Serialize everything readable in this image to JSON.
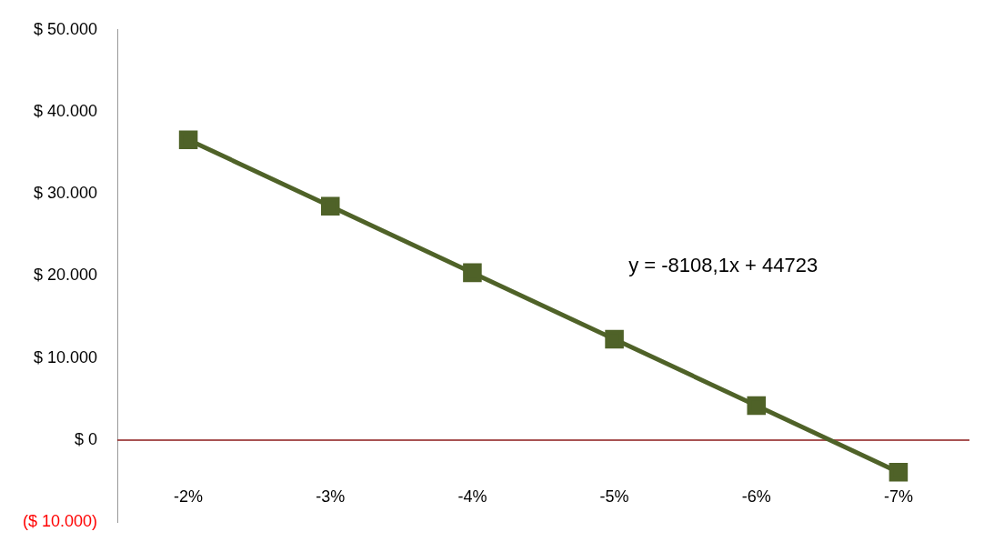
{
  "chart_data": {
    "type": "line",
    "categories": [
      "-2%",
      "-3%",
      "-4%",
      "-5%",
      "-6%",
      "-7%"
    ],
    "series": [
      {
        "color": "#4f6228",
        "values": [
          36600,
          28500,
          20400,
          12300,
          4200,
          -3900
        ]
      }
    ],
    "ylim": [
      -10000,
      50000
    ],
    "yticks": [
      {
        "value": -10000,
        "label": "($ 10.000)"
      },
      {
        "value": 0,
        "label": "$ 0"
      },
      {
        "value": 10000,
        "label": "$ 10.000"
      },
      {
        "value": 20000,
        "label": "$ 20.000"
      },
      {
        "value": 30000,
        "label": "$ 30.000"
      },
      {
        "value": 40000,
        "label": "$ 40.000"
      },
      {
        "value": 50000,
        "label": "$ 50.000"
      }
    ],
    "ref_lines": [
      {
        "axis": "y",
        "value": 0,
        "color": "#8b1a1a"
      }
    ],
    "grid": false,
    "legend": false,
    "marker": "square",
    "line_style": "solid",
    "annotations": [
      "y = -8108,1x + 44723"
    ]
  }
}
